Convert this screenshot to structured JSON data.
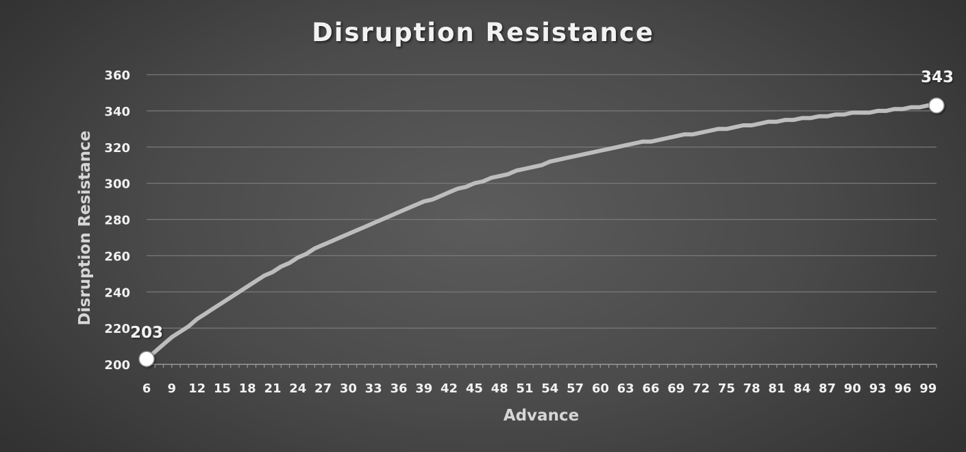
{
  "chart_data": {
    "type": "line",
    "title": "Disruption Resistance",
    "xlabel": "Advance",
    "ylabel": "Disruption Resistance",
    "ylim": [
      200,
      360
    ],
    "yticks": [
      "200",
      "220",
      "240",
      "260",
      "280",
      "300",
      "320",
      "340",
      "360"
    ],
    "xlim": [
      6,
      100
    ],
    "xticks": [
      "6",
      "9",
      "12",
      "15",
      "18",
      "21",
      "24",
      "27",
      "30",
      "33",
      "36",
      "39",
      "42",
      "45",
      "48",
      "51",
      "54",
      "57",
      "60",
      "63",
      "66",
      "69",
      "72",
      "75",
      "78",
      "81",
      "84",
      "87",
      "90",
      "93",
      "96",
      "99"
    ],
    "grid": true,
    "legend": "none",
    "colors": {
      "line": "#bdbdbd",
      "marker": "#ffffff",
      "grid": "#7a7a7a",
      "text": "#f2f2f2"
    },
    "series": [
      {
        "x": [
          6,
          7,
          8,
          9,
          10,
          11,
          12,
          13,
          14,
          15,
          16,
          17,
          18,
          19,
          20,
          21,
          22,
          23,
          24,
          25,
          26,
          27,
          28,
          29,
          30,
          31,
          32,
          33,
          34,
          35,
          36,
          37,
          38,
          39,
          40,
          41,
          42,
          43,
          44,
          45,
          46,
          47,
          48,
          49,
          50,
          51,
          52,
          53,
          54,
          55,
          56,
          57,
          58,
          59,
          60,
          61,
          62,
          63,
          64,
          65,
          66,
          67,
          68,
          69,
          70,
          71,
          72,
          73,
          74,
          75,
          76,
          77,
          78,
          79,
          80,
          81,
          82,
          83,
          84,
          85,
          86,
          87,
          88,
          89,
          90,
          91,
          92,
          93,
          94,
          95,
          96,
          97,
          98,
          99,
          100
        ],
        "values": [
          203,
          207,
          211,
          215,
          218,
          221,
          225,
          228,
          231,
          234,
          237,
          240,
          243,
          246,
          249,
          251,
          254,
          256,
          259,
          261,
          264,
          266,
          268,
          270,
          272,
          274,
          276,
          278,
          280,
          282,
          284,
          286,
          288,
          290,
          291,
          293,
          295,
          297,
          298,
          300,
          301,
          303,
          304,
          305,
          307,
          308,
          309,
          310,
          312,
          313,
          314,
          315,
          316,
          317,
          318,
          319,
          320,
          321,
          322,
          323,
          323,
          324,
          325,
          326,
          327,
          327,
          328,
          329,
          330,
          330,
          331,
          332,
          332,
          333,
          334,
          334,
          335,
          335,
          336,
          336,
          337,
          337,
          338,
          338,
          339,
          339,
          339,
          340,
          340,
          341,
          341,
          342,
          342,
          343,
          343
        ],
        "data_labels": [
          {
            "x": 6,
            "text": "203"
          },
          {
            "x": 100,
            "text": "343"
          }
        ]
      }
    ]
  }
}
